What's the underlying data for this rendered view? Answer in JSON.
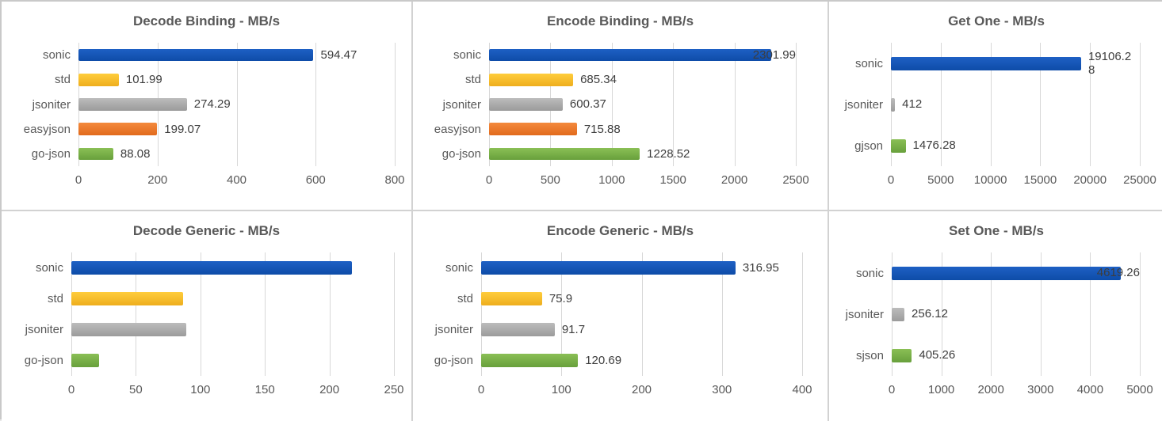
{
  "palette": {
    "blue": {
      "top": "#1e60c4",
      "bottom": "#0e4ca8"
    },
    "yellow": {
      "top": "#ffcd3c",
      "bottom": "#eeae1e"
    },
    "gray": {
      "top": "#bcbcbc",
      "bottom": "#9b9b9b"
    },
    "orange": {
      "top": "#f48a3d",
      "bottom": "#e16a1c"
    },
    "green": {
      "top": "#8abf55",
      "bottom": "#68a03c"
    }
  },
  "text_colors": {
    "title": "#595959",
    "axis": "#595959",
    "value": "#3d3d3d",
    "gridline": "#d8d8d8"
  },
  "chart_data": [
    {
      "type": "bar",
      "orientation": "horizontal",
      "title": "Decode Binding - MB/s",
      "categories": [
        "sonic",
        "std",
        "jsoniter",
        "easyjson",
        "go-json"
      ],
      "values": [
        594.47,
        101.99,
        274.29,
        199.07,
        88.08
      ],
      "value_labels": [
        "594.47",
        "101.99",
        "274.29",
        "199.07",
        "88.08"
      ],
      "colors": [
        "blue",
        "yellow",
        "gray",
        "orange",
        "green"
      ],
      "xlim": [
        0,
        800
      ],
      "xticks": [
        0,
        200,
        400,
        600,
        800
      ],
      "grid": "vertical",
      "values_estimated": false
    },
    {
      "type": "bar",
      "orientation": "horizontal",
      "title": "Encode Binding - MB/s",
      "categories": [
        "sonic",
        "std",
        "jsoniter",
        "easyjson",
        "go-json"
      ],
      "values": [
        2301.99,
        685.34,
        600.37,
        715.88,
        1228.52
      ],
      "value_labels": [
        "2301.99",
        "685.34",
        "600.37",
        "715.88",
        "1228.52"
      ],
      "colors": [
        "blue",
        "yellow",
        "gray",
        "orange",
        "green"
      ],
      "xlim": [
        0,
        2500
      ],
      "xticks": [
        0,
        500,
        1000,
        1500,
        2000,
        2500
      ],
      "grid": "vertical",
      "values_estimated": false
    },
    {
      "type": "bar",
      "orientation": "horizontal",
      "title": "Get One - MB/s",
      "categories": [
        "sonic",
        "jsoniter",
        "gjson"
      ],
      "values": [
        19106.28,
        412,
        1476.28
      ],
      "value_labels": [
        "19106.2\n8",
        "412",
        "1476.28"
      ],
      "colors": [
        "blue",
        "gray",
        "green"
      ],
      "xlim": [
        0,
        25000
      ],
      "xticks": [
        0,
        5000,
        10000,
        15000,
        20000,
        25000
      ],
      "grid": "vertical",
      "values_estimated": false
    },
    {
      "type": "bar",
      "orientation": "horizontal",
      "title": "Decode Generic - MB/s",
      "categories": [
        "sonic",
        "std",
        "jsoniter",
        "go-json"
      ],
      "values": [
        217.3,
        86.7,
        89.2,
        21.4
      ],
      "value_labels": [
        "",
        "",
        "",
        ""
      ],
      "colors": [
        "blue",
        "yellow",
        "gray",
        "green"
      ],
      "xlim": [
        0,
        250
      ],
      "xticks": [
        0,
        50,
        100,
        150,
        200,
        250
      ],
      "grid": "vertical",
      "values_estimated": true
    },
    {
      "type": "bar",
      "orientation": "horizontal",
      "title": "Encode Generic - MB/s",
      "categories": [
        "sonic",
        "std",
        "jsoniter",
        "go-json"
      ],
      "values": [
        316.95,
        75.9,
        91.7,
        120.69
      ],
      "value_labels": [
        "316.95",
        "75.9",
        "91.7",
        "120.69"
      ],
      "colors": [
        "blue",
        "yellow",
        "gray",
        "green"
      ],
      "xlim": [
        0,
        400
      ],
      "xticks": [
        0,
        100,
        200,
        300,
        400
      ],
      "grid": "vertical",
      "values_estimated": false
    },
    {
      "type": "bar",
      "orientation": "horizontal",
      "title": "Set One - MB/s",
      "categories": [
        "sonic",
        "jsoniter",
        "sjson"
      ],
      "values": [
        4619.26,
        256.12,
        405.26
      ],
      "value_labels": [
        "4619.26",
        "256.12",
        "405.26"
      ],
      "colors": [
        "blue",
        "gray",
        "green"
      ],
      "xlim": [
        0,
        5000
      ],
      "xticks": [
        0,
        1000,
        2000,
        3000,
        4000,
        5000
      ],
      "grid": "vertical",
      "values_estimated": false
    }
  ]
}
